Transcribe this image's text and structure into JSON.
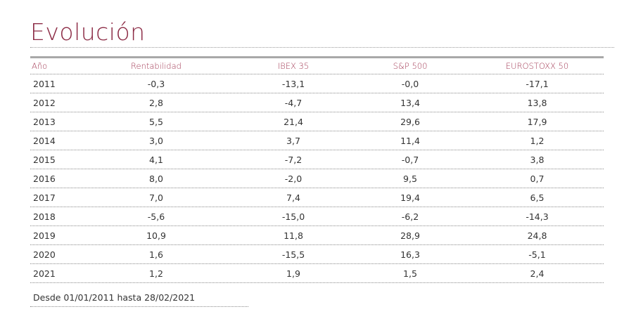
{
  "title": "Evolución",
  "table": {
    "headers": [
      "Año",
      "Rentabilidad",
      "IBEX 35",
      "S&P 500",
      "EUROSTOXX 50"
    ],
    "rows": [
      [
        "2011",
        "-0,3",
        "-13,1",
        "-0,0",
        "-17,1"
      ],
      [
        "2012",
        "2,8",
        "-4,7",
        "13,4",
        "13,8"
      ],
      [
        "2013",
        "5,5",
        "21,4",
        "29,6",
        "17,9"
      ],
      [
        "2014",
        "3,0",
        "3,7",
        "11,4",
        "1,2"
      ],
      [
        "2015",
        "4,1",
        "-7,2",
        "-0,7",
        "3,8"
      ],
      [
        "2016",
        "8,0",
        "-2,0",
        "9,5",
        "0,7"
      ],
      [
        "2017",
        "7,0",
        "7,4",
        "19,4",
        "6,5"
      ],
      [
        "2018",
        "-5,6",
        "-15,0",
        "-6,2",
        "-14,3"
      ],
      [
        "2019",
        "10,9",
        "11,8",
        "28,9",
        "24,8"
      ],
      [
        "2020",
        "1,6",
        "-15,5",
        "16,3",
        "-5,1"
      ],
      [
        "2021",
        "1,2",
        "1,9",
        "1,5",
        "2,4"
      ]
    ]
  },
  "footnote": "Desde 01/01/2011 hasta 28/02/2021",
  "colors": {
    "accent": "#8c2b45",
    "header_text": "#a33a55",
    "rule": "#a8a8a8"
  }
}
